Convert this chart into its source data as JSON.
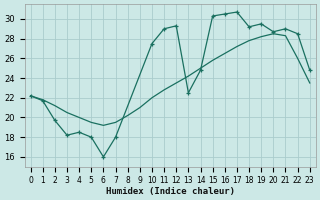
{
  "xlabel": "Humidex (Indice chaleur)",
  "background_color": "#cce8e6",
  "grid_color": "#aacccc",
  "line_color": "#1a7060",
  "xlim": [
    -0.5,
    23.5
  ],
  "ylim": [
    15.0,
    31.5
  ],
  "yticks": [
    16,
    18,
    20,
    22,
    24,
    26,
    28,
    30
  ],
  "xticks": [
    0,
    1,
    2,
    3,
    4,
    5,
    6,
    7,
    8,
    9,
    10,
    11,
    12,
    13,
    14,
    15,
    16,
    17,
    18,
    19,
    20,
    21,
    22,
    23
  ],
  "line1_x": [
    0,
    1,
    2,
    3,
    4,
    5,
    6,
    7,
    10,
    11,
    12,
    13,
    14,
    15,
    16,
    17,
    18,
    19,
    20,
    21,
    22,
    23
  ],
  "line1_y": [
    22.2,
    21.7,
    19.7,
    18.2,
    18.5,
    18.0,
    16.0,
    18.0,
    27.5,
    29.0,
    29.3,
    22.5,
    24.8,
    30.3,
    30.5,
    30.7,
    29.2,
    29.5,
    28.7,
    29.0,
    28.5,
    24.8
  ],
  "line2_x": [
    0,
    1,
    2,
    3,
    4,
    5,
    6,
    7,
    8,
    9,
    10,
    11,
    12,
    13,
    14,
    15,
    16,
    17,
    18,
    19,
    20,
    21,
    22,
    23
  ],
  "line2_y": [
    22.2,
    21.8,
    21.2,
    20.5,
    20.0,
    19.5,
    19.2,
    19.5,
    20.2,
    21.0,
    22.0,
    22.8,
    23.5,
    24.2,
    25.0,
    25.8,
    26.5,
    27.2,
    27.8,
    28.2,
    28.5,
    28.3,
    26.0,
    23.5
  ]
}
